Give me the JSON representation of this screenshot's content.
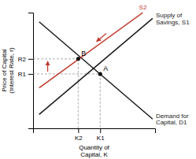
{
  "chart_data": {
    "type": "line",
    "xlabel": "Quantity of\nCapital, K",
    "ylabel": "Price of Capital\n(Interest Rate, r)",
    "xlim": [
      0,
      10
    ],
    "ylim": [
      0,
      10
    ],
    "xticks": [
      {
        "value": 5.5,
        "label": "K1"
      },
      {
        "value": 3.7,
        "label": "K2"
      }
    ],
    "yticks": [
      {
        "value": 4.7,
        "label": "R1"
      },
      {
        "value": 6.0,
        "label": "R2"
      }
    ],
    "series": [
      {
        "name": "Demand for\nCapital, D1",
        "x": [
          0.5,
          9.8
        ],
        "values": [
          9.2,
          0.8
        ],
        "color": "#1a1a1a"
      },
      {
        "name": "Supply of\nSavings, S1",
        "x": [
          0.5,
          9.8
        ],
        "values": [
          1.2,
          9.5
        ],
        "color": "#1a1a1a"
      },
      {
        "name": "S2",
        "x": [
          0.5,
          9.0
        ],
        "values": [
          3.5,
          10.0
        ],
        "color": "#c0392b"
      }
    ],
    "points": [
      {
        "label": "A",
        "x": 5.5,
        "y": 4.7
      },
      {
        "label": "B",
        "x": 3.7,
        "y": 6.0
      }
    ],
    "arrows": [
      {
        "x": [
          1.2,
          1.2
        ],
        "y": [
          4.9,
          5.8
        ],
        "color": "#c0392b"
      },
      {
        "x": [
          6.0,
          5.2
        ],
        "y": [
          8.2,
          7.5
        ],
        "color": "#c0392b"
      }
    ]
  }
}
